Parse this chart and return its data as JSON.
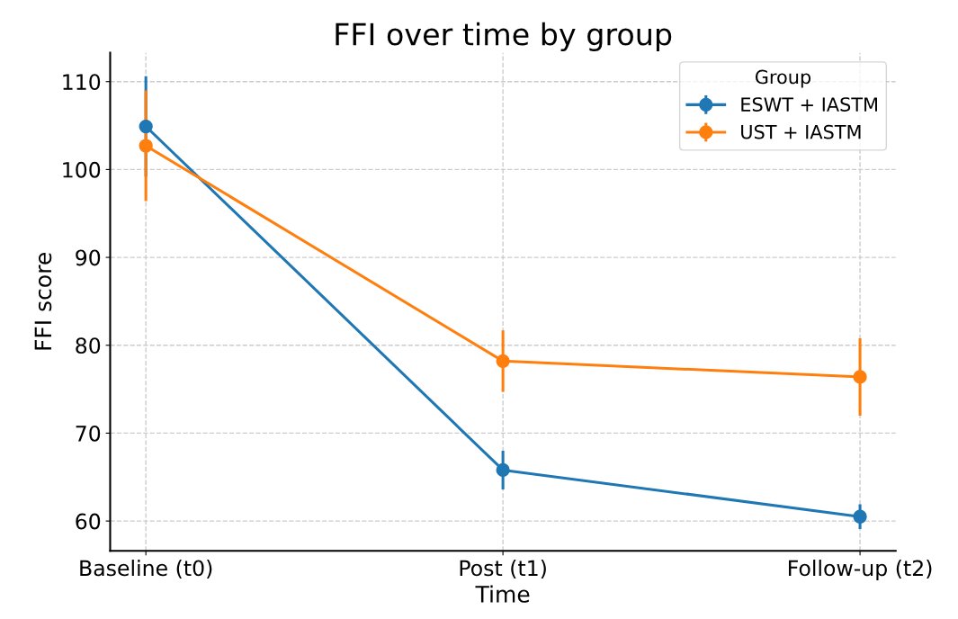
{
  "chart_data": {
    "type": "line",
    "title": "FFI over time by group",
    "xlabel": "Time",
    "ylabel": "FFI score",
    "categories": [
      "Baseline (t0)",
      "Post (t1)",
      "Follow-up (t2)"
    ],
    "series": [
      {
        "name": "ESWT + IASTM",
        "color": "#1f77b4",
        "values": [
          104.9,
          65.8,
          60.5
        ],
        "errors": [
          5.7,
          2.2,
          1.4
        ]
      },
      {
        "name": "UST + IASTM",
        "color": "#ff7f0e",
        "values": [
          102.7,
          78.2,
          76.4
        ],
        "errors": [
          6.3,
          3.5,
          4.4
        ]
      }
    ],
    "ylim": [
      56.6,
      113.3
    ],
    "yticks": [
      60,
      70,
      80,
      90,
      100,
      110
    ],
    "grid": true,
    "legend": "top right",
    "legend_title": "Group",
    "marker": "circle",
    "line_style": "solid"
  }
}
